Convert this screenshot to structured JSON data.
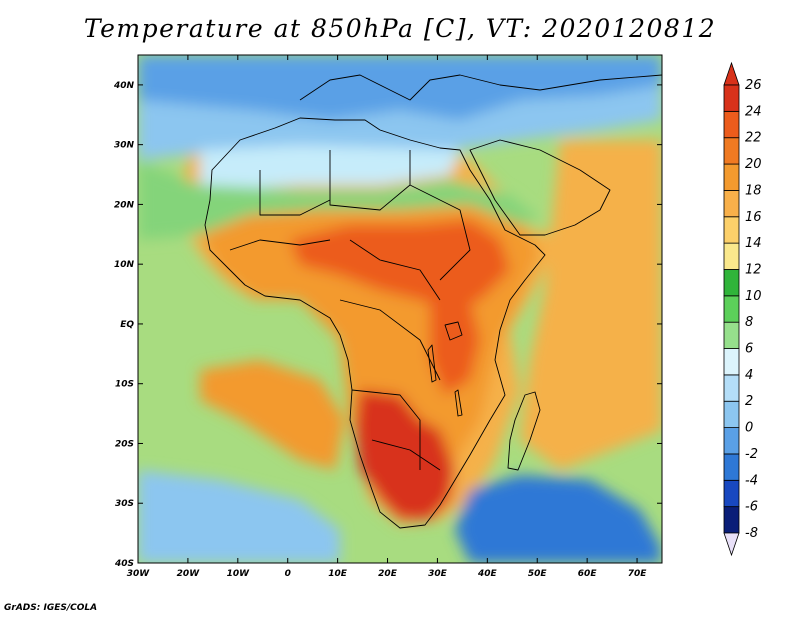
{
  "title": "Temperature at 850hPa [C], VT: 2020120812",
  "credit": "GrADS: IGES/COLA",
  "map": {
    "projection": "lat-lon",
    "lon_range": [
      -30,
      75
    ],
    "lat_range": [
      -40,
      45
    ],
    "lon_ticks": [
      {
        "value": -30,
        "label": "30W"
      },
      {
        "value": -20,
        "label": "20W"
      },
      {
        "value": -10,
        "label": "10W"
      },
      {
        "value": 0,
        "label": "0"
      },
      {
        "value": 10,
        "label": "10E"
      },
      {
        "value": 20,
        "label": "20E"
      },
      {
        "value": 30,
        "label": "30E"
      },
      {
        "value": 40,
        "label": "40E"
      },
      {
        "value": 50,
        "label": "50E"
      },
      {
        "value": 60,
        "label": "60E"
      },
      {
        "value": 70,
        "label": "70E"
      }
    ],
    "lat_ticks": [
      {
        "value": 40,
        "label": "40N"
      },
      {
        "value": 30,
        "label": "30N"
      },
      {
        "value": 20,
        "label": "20N"
      },
      {
        "value": 10,
        "label": "10N"
      },
      {
        "value": 0,
        "label": "EQ"
      },
      {
        "value": -10,
        "label": "10S"
      },
      {
        "value": -20,
        "label": "20S"
      },
      {
        "value": -30,
        "label": "30S"
      },
      {
        "value": -40,
        "label": "40S"
      }
    ],
    "ocean_color": "#a8dc80",
    "land_color": "#f5b14a",
    "zones": [
      {
        "name": "north-med-cool",
        "color": "#5aa0e6"
      },
      {
        "name": "med-light",
        "color": "#8cc6f0"
      },
      {
        "name": "sahara-cool",
        "color": "#c6ecfa"
      },
      {
        "name": "sahara-green",
        "color": "#84d47a"
      },
      {
        "name": "sahel-warm",
        "color": "#f39a2e"
      },
      {
        "name": "central-hot",
        "color": "#ec5c1c"
      },
      {
        "name": "southern-hot",
        "color": "#d8321a"
      },
      {
        "name": "south-ocean-cold",
        "color": "#2e78d6"
      },
      {
        "name": "south-ocean-mid",
        "color": "#8cc6f0"
      }
    ]
  },
  "colorbar": {
    "levels": [
      -8,
      -6,
      -4,
      -2,
      0,
      2,
      4,
      6,
      8,
      10,
      12,
      14,
      16,
      18,
      20,
      22,
      24,
      26
    ],
    "labels": [
      "26",
      "24",
      "22",
      "20",
      "18",
      "16",
      "14",
      "12",
      "10",
      "8",
      "6",
      "4",
      "2",
      "0",
      "-2",
      "-4",
      "-6",
      "-8"
    ],
    "colors": [
      "#0a1e78",
      "#1848c0",
      "#2e78d6",
      "#5aa0e6",
      "#8cc6f0",
      "#b4def8",
      "#dcf4fc",
      "#96e08c",
      "#5cd05a",
      "#30b43a",
      "#fae88c",
      "#fcd06a",
      "#f8b04a",
      "#f39a2e",
      "#f07a22",
      "#ec5c1c",
      "#d8321a",
      "#c41410",
      "#e8e0f8"
    ]
  }
}
